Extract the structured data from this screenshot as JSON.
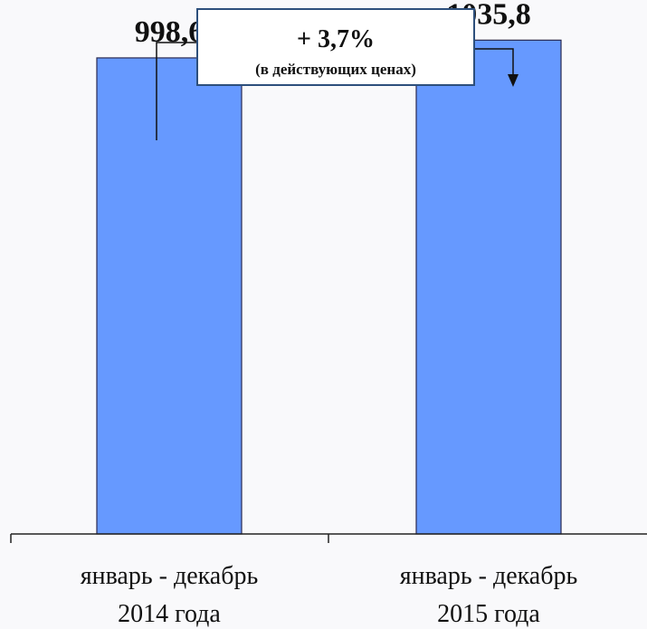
{
  "chart_data": {
    "type": "bar",
    "categories": [
      [
        "январь - декабрь",
        "2014 года"
      ],
      [
        "январь - декабрь",
        "2015 года"
      ]
    ],
    "values": [
      998.6,
      1035.8
    ],
    "value_labels": [
      "998,6",
      "1035,8"
    ],
    "ylim": [
      0,
      1120
    ],
    "grid": false,
    "legend": "none",
    "bar_color": "#6699ff",
    "bar_edge_color": "#2a2a50",
    "annotation": {
      "main": "+ 3,7%",
      "sub": "(в действующих ценах)"
    }
  }
}
